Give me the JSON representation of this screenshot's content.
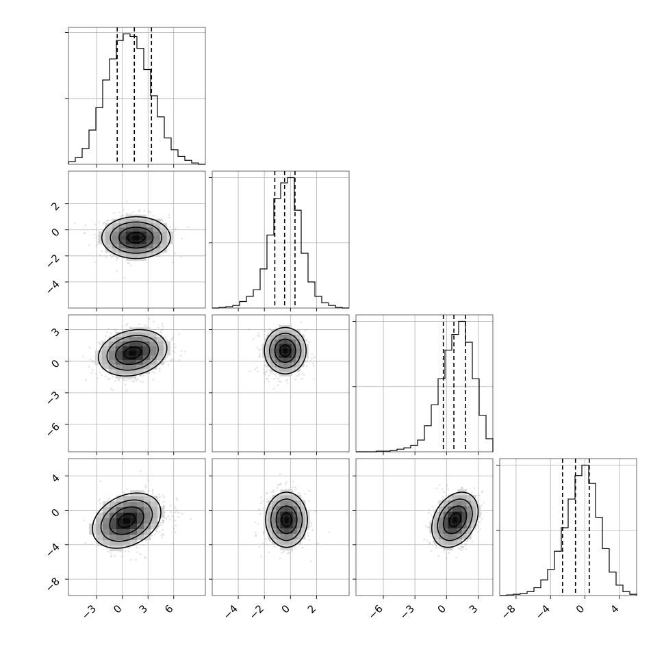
{
  "chart_data": {
    "type": "corner",
    "grid": true,
    "n_params": 4,
    "params": [
      {
        "range": [
          -6.3,
          9.7
        ],
        "ticks": [
          -3,
          0,
          3,
          6
        ],
        "ticklabels": [
          "−3",
          "0",
          "3",
          "6"
        ],
        "hist_edges": [
          -6.3,
          -5.5,
          -4.7,
          -3.9,
          -3.1,
          -2.3,
          -1.5,
          -0.7,
          0.1,
          0.9,
          1.7,
          2.5,
          3.3,
          4.1,
          4.9,
          5.7,
          6.5,
          7.3,
          8.1,
          8.9,
          9.7
        ],
        "hist_counts": [
          0.02,
          0.05,
          0.12,
          0.26,
          0.43,
          0.64,
          0.8,
          0.94,
          0.99,
          0.97,
          0.88,
          0.72,
          0.52,
          0.36,
          0.2,
          0.11,
          0.06,
          0.03,
          0.01,
          0.0
        ],
        "quantiles": [
          -0.6,
          1.4,
          3.4
        ]
      },
      {
        "range": [
          -6.0,
          4.5
        ],
        "ticks": [
          -4,
          -2,
          0,
          2
        ],
        "ticklabels": [
          "−4",
          "−2",
          "0",
          "2"
        ],
        "hist_edges": [
          -6.0,
          -5.475,
          -4.95,
          -4.425,
          -3.9,
          -3.375,
          -2.85,
          -2.325,
          -1.8,
          -1.275,
          -0.75,
          -0.225,
          0.3,
          0.825,
          1.35,
          1.875,
          2.4,
          2.925,
          3.45,
          3.975,
          4.5
        ],
        "hist_counts": [
          0.0,
          0.005,
          0.01,
          0.02,
          0.05,
          0.09,
          0.14,
          0.3,
          0.56,
          0.84,
          0.96,
          1.0,
          0.75,
          0.42,
          0.2,
          0.09,
          0.04,
          0.02,
          0.005,
          0.0
        ],
        "quantiles": [
          -1.2,
          -0.45,
          0.35
        ]
      },
      {
        "range": [
          -8.6,
          4.4
        ],
        "ticks": [
          -6,
          -3,
          0,
          3
        ],
        "ticklabels": [
          "−6",
          "−3",
          "0",
          "3"
        ],
        "hist_edges": [
          -8.6,
          -7.95,
          -7.3,
          -6.65,
          -6.0,
          -5.35,
          -4.7,
          -4.05,
          -3.4,
          -2.75,
          -2.1,
          -1.45,
          -0.8,
          -0.15,
          0.5,
          1.15,
          1.8,
          2.45,
          3.1,
          3.75,
          4.4
        ],
        "hist_counts": [
          0.0,
          0.0,
          0.0,
          0.005,
          0.005,
          0.01,
          0.02,
          0.03,
          0.05,
          0.09,
          0.2,
          0.36,
          0.56,
          0.78,
          0.9,
          1.0,
          0.84,
          0.56,
          0.28,
          0.1
        ],
        "quantiles": [
          -0.3,
          0.7,
          1.8
        ]
      },
      {
        "range": [
          -9.9,
          6.0
        ],
        "ticks": [
          -8,
          -4,
          0,
          4
        ],
        "ticklabels": [
          "−8",
          "−4",
          "0",
          "4"
        ],
        "hist_edges": [
          -9.9,
          -9.105,
          -8.31,
          -7.515,
          -6.72,
          -5.925,
          -5.13,
          -4.335,
          -3.54,
          -2.745,
          -1.95,
          -1.155,
          -0.36,
          0.435,
          1.23,
          2.025,
          2.82,
          3.615,
          4.41,
          5.205,
          6.0
        ],
        "hist_counts": [
          0.0,
          0.005,
          0.01,
          0.015,
          0.03,
          0.06,
          0.12,
          0.2,
          0.34,
          0.52,
          0.74,
          0.92,
          1.0,
          0.86,
          0.6,
          0.36,
          0.18,
          0.08,
          0.03,
          0.01
        ],
        "quantiles": [
          -2.6,
          -1.1,
          0.5
        ]
      }
    ],
    "pairs": [
      {
        "x": 0,
        "y": 1,
        "mean": [
          1.4,
          -0.45
        ],
        "sd": [
          2.0,
          0.8
        ],
        "corr": 0.0,
        "peak": [
          1.6,
          -0.6
        ],
        "contour_levels": [
          0.5,
          1.0,
          1.5,
          2.0
        ]
      },
      {
        "x": 0,
        "y": 2,
        "mean": [
          1.4,
          0.7
        ],
        "sd": [
          2.0,
          1.1
        ],
        "corr": 0.2,
        "peak": [
          1.2,
          0.8
        ],
        "contour_levels": [
          0.5,
          1.0,
          1.5,
          2.0
        ]
      },
      {
        "x": 1,
        "y": 2,
        "mean": [
          -0.45,
          0.7
        ],
        "sd": [
          0.8,
          1.1
        ],
        "corr": 0.0,
        "peak": [
          -0.4,
          1.0
        ],
        "contour_levels": [
          0.5,
          1.0,
          1.5,
          2.0
        ]
      },
      {
        "x": 0,
        "y": 3,
        "mean": [
          1.4,
          -1.1
        ],
        "sd": [
          2.0,
          1.6
        ],
        "corr": 0.3,
        "peak": [
          0.5,
          -1.2
        ],
        "contour_levels": [
          0.5,
          1.0,
          1.5,
          2.0
        ]
      },
      {
        "x": 1,
        "y": 3,
        "mean": [
          -0.45,
          -1.1
        ],
        "sd": [
          0.8,
          1.6
        ],
        "corr": 0.0,
        "peak": [
          -0.3,
          -1.1
        ],
        "contour_levels": [
          0.5,
          1.0,
          1.5,
          2.0
        ]
      },
      {
        "x": 2,
        "y": 3,
        "mean": [
          0.7,
          -1.1
        ],
        "sd": [
          1.1,
          1.6
        ],
        "corr": 0.3,
        "peak": [
          0.8,
          -1.1
        ],
        "contour_levels": [
          0.5,
          1.0,
          1.5,
          2.0
        ]
      }
    ]
  }
}
